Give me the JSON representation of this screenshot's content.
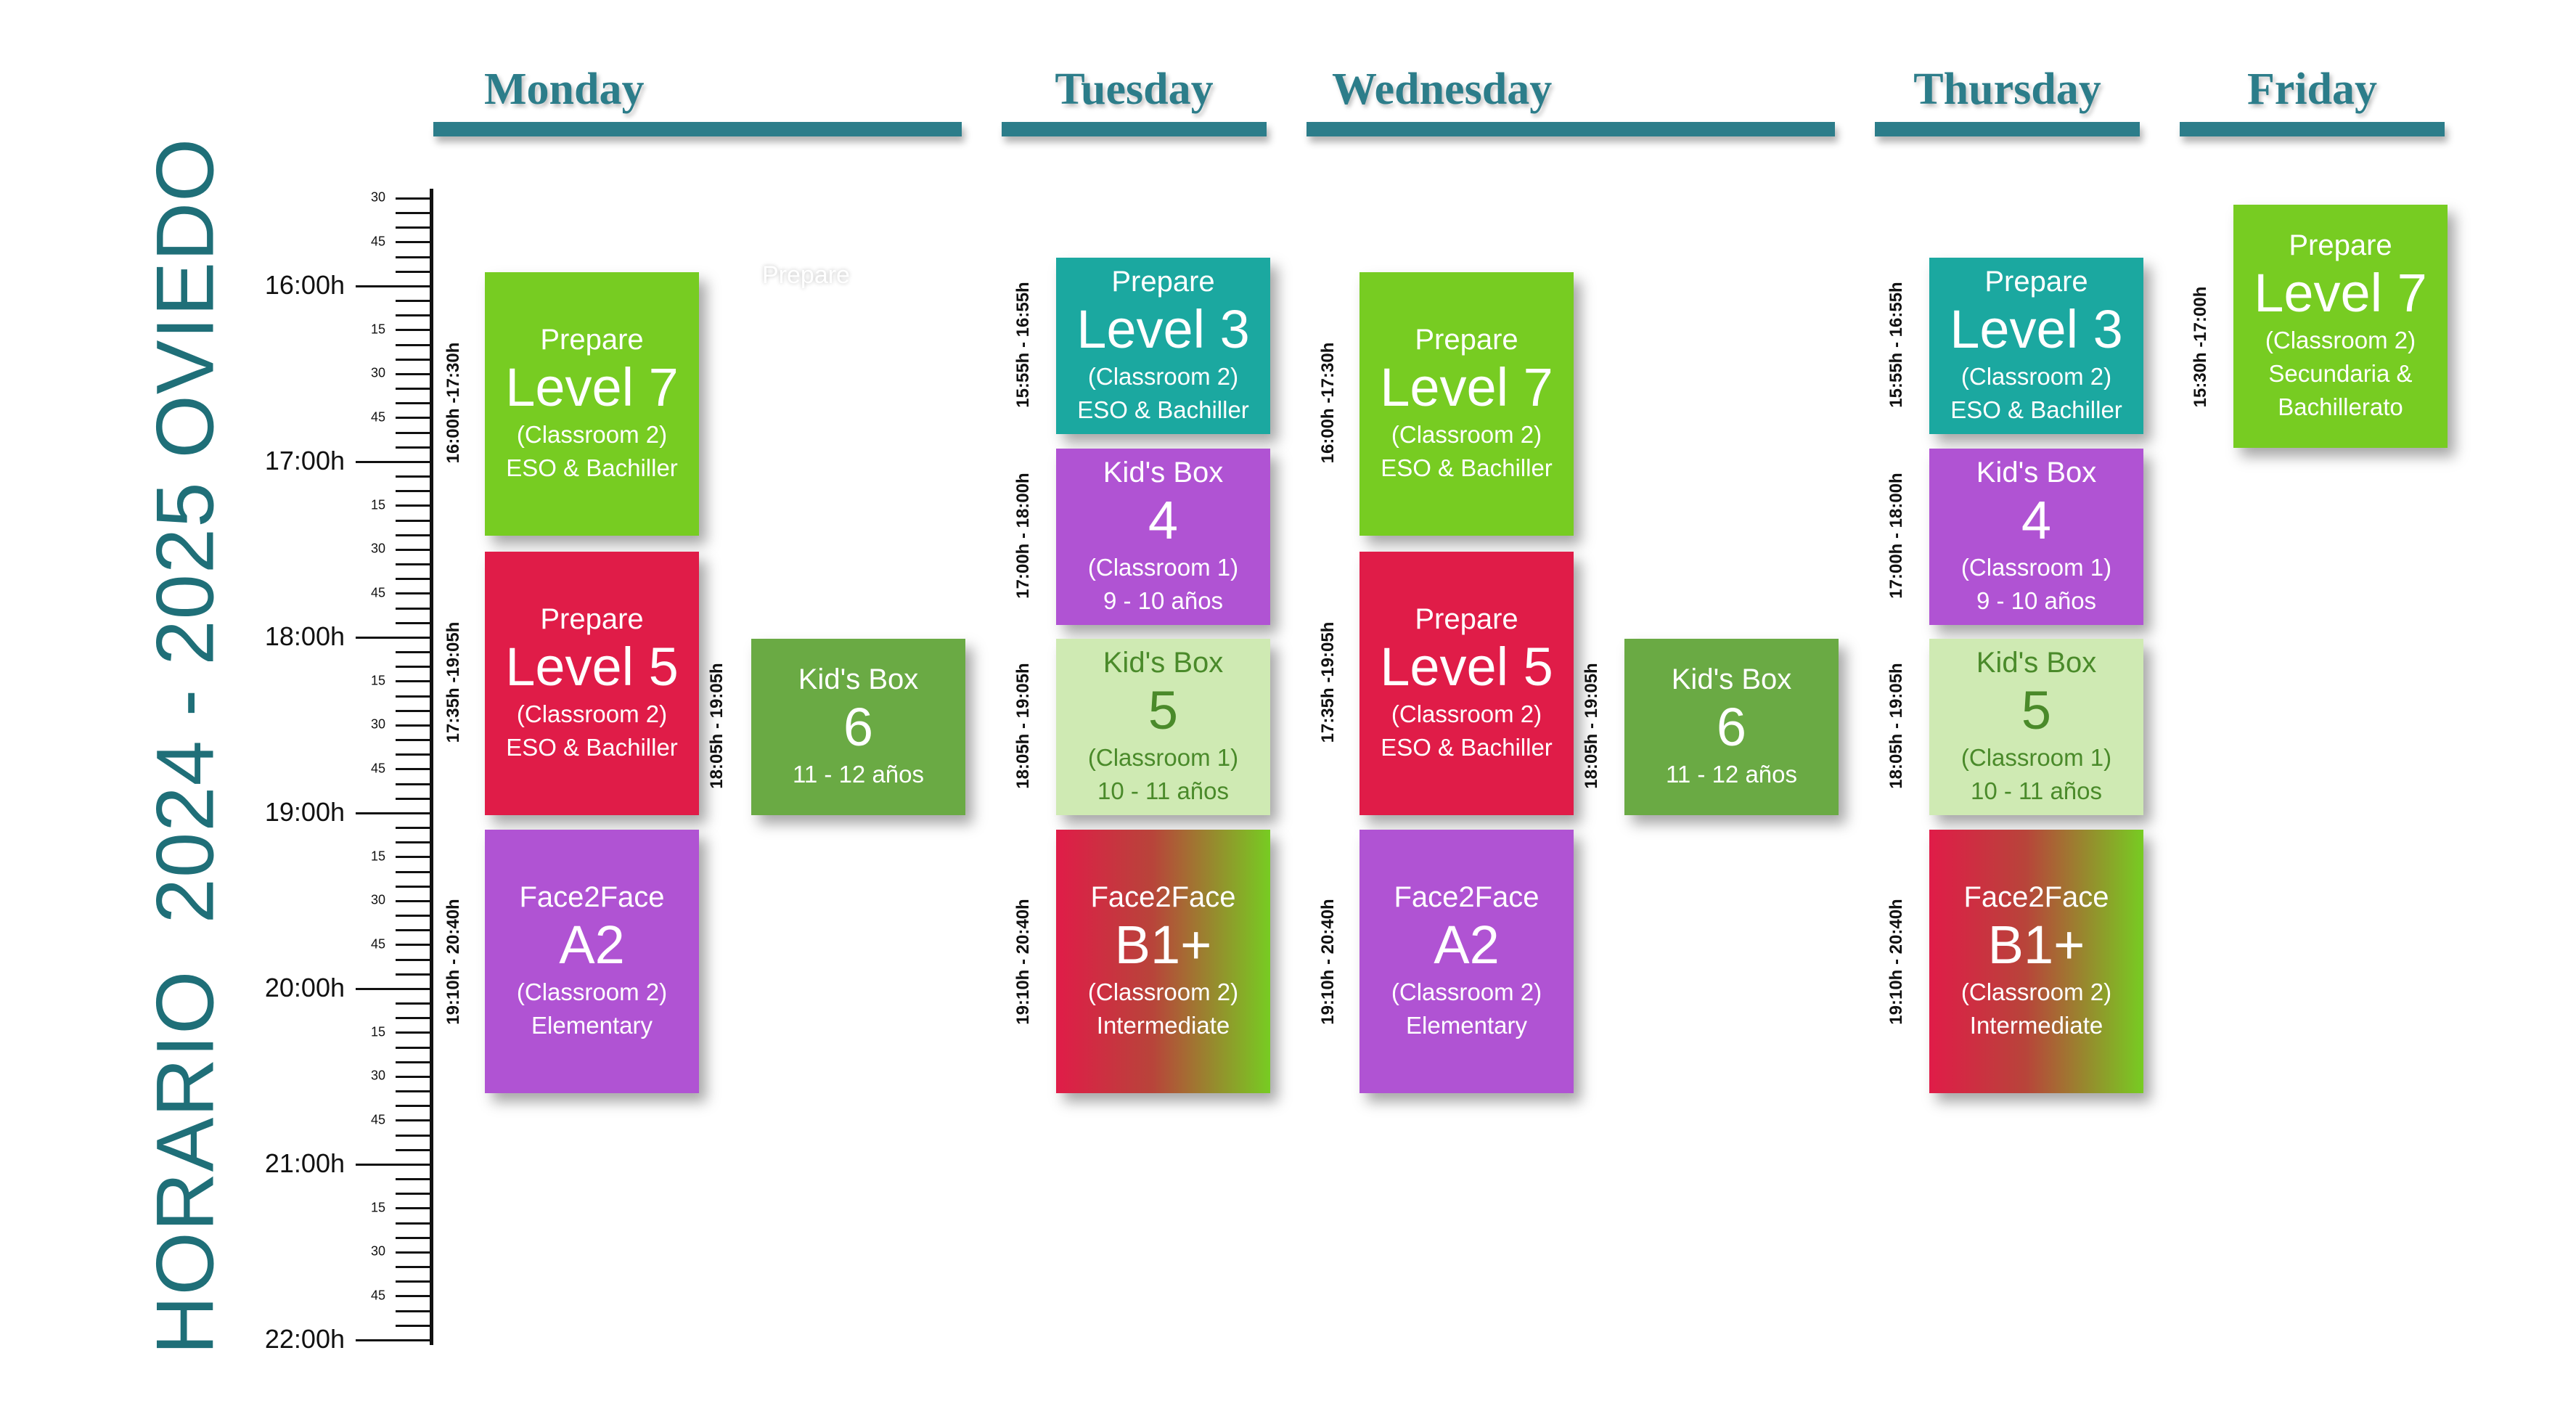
{
  "title": "HORARIO  2024 - 2025 OVIEDO",
  "days": [
    "Monday",
    "Tuesday",
    "Wednesday",
    "Thursday",
    "Friday"
  ],
  "ghost_text": "Prepare",
  "hours": [
    "16:00h",
    "17:00h",
    "18:00h",
    "19:00h",
    "20:00h",
    "21:00h",
    "22:00h"
  ],
  "minute_labels": [
    "15",
    "30",
    "45"
  ],
  "top_minute_labels": [
    "30",
    "45"
  ],
  "colors": {
    "green": "#77cc22",
    "red": "#e01c48",
    "purple": "#b053d3",
    "teal": "#1ba8a0",
    "light_green": "#cfeab3",
    "dark_green": "#6aaa44",
    "gradient_start": "#e01c48",
    "gradient_end": "#77cc22",
    "heading": "#2c7d8a"
  },
  "classes": {
    "mon_prepare7": {
      "time": "16:00h -17:30h",
      "top": "Prepare",
      "big": "Level 7",
      "line1": "(Classroom 2)",
      "line2": "ESO & Bachiller"
    },
    "mon_prepare5": {
      "time": "17:35h -19:05h",
      "top": "Prepare",
      "big": "Level 5",
      "line1": "(Classroom 2)",
      "line2": "ESO & Bachiller"
    },
    "mon_kids6": {
      "time": "18:05h - 19:05h",
      "top": "Kid's Box",
      "big": "6",
      "line1": "11 - 12 años"
    },
    "mon_f2fa2": {
      "time": "19:10h - 20:40h",
      "top": "Face2Face",
      "big": "A2",
      "line1": "(Classroom 2)",
      "line2": "Elementary"
    },
    "tue_prepare3": {
      "time": "15:55h - 16:55h",
      "top": "Prepare",
      "big": "Level 3",
      "line1": "(Classroom 2)",
      "line2": "ESO & Bachiller"
    },
    "tue_kids4": {
      "time": "17:00h - 18:00h",
      "top": "Kid's Box",
      "big": "4",
      "line1": "(Classroom 1)",
      "line2": "9 - 10 años"
    },
    "tue_kids5": {
      "time": "18:05h - 19:05h",
      "top": "Kid's Box",
      "big": "5",
      "line1": "(Classroom 1)",
      "line2": "10 - 11 años"
    },
    "tue_f2fb1": {
      "time": "19:10h - 20:40h",
      "top": "Face2Face",
      "big": "B1+",
      "line1": "(Classroom 2)",
      "line2": "Intermediate"
    },
    "wed_prepare7": {
      "time": "16:00h -17:30h",
      "top": "Prepare",
      "big": "Level 7",
      "line1": "(Classroom 2)",
      "line2": "ESO & Bachiller"
    },
    "wed_prepare5": {
      "time": "17:35h -19:05h",
      "top": "Prepare",
      "big": "Level 5",
      "line1": "(Classroom 2)",
      "line2": "ESO & Bachiller"
    },
    "wed_kids6": {
      "time": "18:05h - 19:05h",
      "top": "Kid's Box",
      "big": "6",
      "line1": "11 - 12 años"
    },
    "wed_f2fa2": {
      "time": "19:10h - 20:40h",
      "top": "Face2Face",
      "big": "A2",
      "line1": "(Classroom 2)",
      "line2": "Elementary"
    },
    "thu_prepare3": {
      "time": "15:55h - 16:55h",
      "top": "Prepare",
      "big": "Level 3",
      "line1": "(Classroom 2)",
      "line2": "ESO & Bachiller"
    },
    "thu_kids4": {
      "time": "17:00h - 18:00h",
      "top": "Kid's Box",
      "big": "4",
      "line1": "(Classroom 1)",
      "line2": "9 - 10 años"
    },
    "thu_kids5": {
      "time": "18:05h - 19:05h",
      "top": "Kid's Box",
      "big": "5",
      "line1": "(Classroom 1)",
      "line2": "10 - 11 años"
    },
    "thu_f2fb1": {
      "time": "19:10h - 20:40h",
      "top": "Face2Face",
      "big": "B1+",
      "line1": "(Classroom 2)",
      "line2": "Intermediate"
    },
    "fri_prepare7": {
      "time": "15:30h -17:00h",
      "top": "Prepare",
      "big": "Level 7",
      "line1": "(Classroom 2)",
      "line2": "Secundaria &",
      "line3": "Bachillerato"
    }
  }
}
